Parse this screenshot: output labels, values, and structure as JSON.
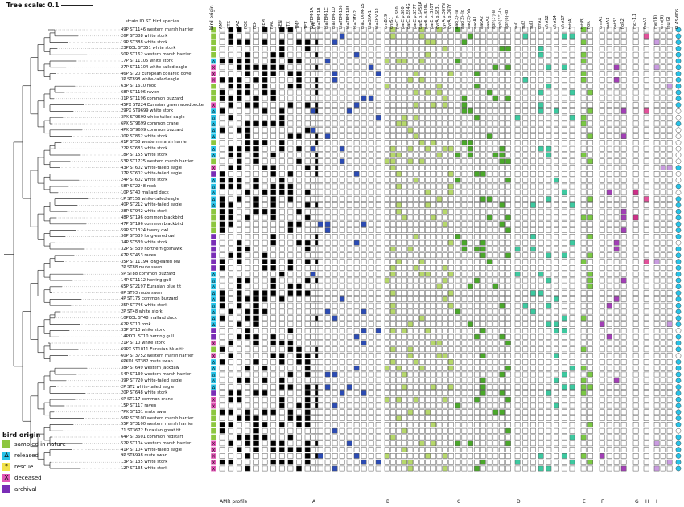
{
  "scale": {
    "label": "Tree scale: 0.1"
  },
  "column_title_strain": "strain ID ST bird species",
  "column_title_origin": "bird origin",
  "strains": [
    "49P ST1146 western marsh harrier",
    "26P ST388 white stork",
    "19P ST388 white stork",
    "23PKOL ST351 white stork",
    "50P ST162 western marsh harrier",
    "17P ST11105 white stork",
    "27P ST11104 white-tailed eagle",
    "46P ST20 European collared dove",
    "3P ST898 white-tailed eagle",
    "63P ST1610 rook",
    "68P ST1196 raven",
    "31P ST1196 common buzzard",
    "45PX ST224 Eurasian green woodpecker",
    "29PX ST9699 white stork",
    "3PX ST9699 white-tailed eagle",
    "6PX ST9699 common crane",
    "4PX ST9699 common buzzard",
    "30P ST862 white stork",
    "61P ST58 western marsh harrier",
    "22P ST683 white stork",
    "18P ST155 white stork",
    "53P ST1725 western marsh harrier",
    "43P ST602 white-tailed eagle",
    "37P ST602 white-tailed eagle",
    "24P ST602 white stork",
    "58P ST2248 rook",
    "10P ST40 mallard duck",
    "1P ST156 white-tailed eagle",
    "40P ST212 white-tailed eagle",
    "28P ST942 white stork",
    "48P ST196 common blackbird",
    "47P ST196 common blackbird",
    "59P ST1324 tawny owl",
    "36P ST539 long-eared owl",
    "34P ST539 white stork",
    "32P ST539 northern goshawk",
    "67P ST453 raven",
    "35P ST11194 long-eared owl",
    "7P ST88 mute swan",
    "5P ST88 common buzzard",
    "14P ST1112 herring gull",
    "65P ST2197 Eurasian blue tit",
    "8P ST93 mute swan",
    "4P ST175 common buzzard",
    "25P ST746 white stork",
    "2P ST48 white stork",
    "10PKOL ST48 mallard duck",
    "62P ST10 rook",
    "33P ST10 white stork",
    "14PKOL ST10 herring gull",
    "21P ST10 white stork",
    "69PX ST1011 Eurasian blue tit",
    "60P ST3752 western marsh harrier",
    "6PKOL ST382 mute swan",
    "38P ST649 western jackdaw",
    "54P ST130 western marsh harrier",
    "39P ST720 white-tailed eagle",
    "2P ST2 white-tailed eagle",
    "20P ST648 white stork",
    "6P ST117 common crane",
    "15P ST117 raven",
    "7PX ST131 mute swan",
    "56P ST3100 western marsh harrier",
    "55P ST3100 western marsh harrier",
    "71 ST3672 Eurasian great tit",
    "64P ST3601 common redstart",
    "52P ST104 western marsh harrier",
    "41P ST104 white-tailed eagle",
    "9P ST6998 mute swan",
    "13P ST135 white stork",
    "12P ST135 white stork"
  ],
  "origins": [
    "s",
    "s",
    "s",
    "s",
    "s",
    "r",
    "d",
    "d",
    "d",
    "s",
    "s",
    "s",
    "d",
    "r",
    "r",
    "r",
    "r",
    "r",
    "s",
    "r",
    "r",
    "s",
    "d",
    "a",
    "r",
    "r",
    "r",
    "r",
    "r",
    "s",
    "s",
    "s",
    "s",
    "a",
    "a",
    "a",
    "a",
    "a",
    "a",
    "r",
    "r",
    "r",
    "r",
    "r",
    "r",
    "r",
    "r",
    "r",
    "a",
    "a",
    "d",
    "s",
    "d",
    "r",
    "r",
    "r",
    "r",
    "r",
    "a",
    "d",
    "d",
    "s",
    "s",
    "s",
    "s",
    "s",
    "d",
    "d",
    "d",
    "d",
    "d"
  ],
  "origin_colors": {
    "s": "#8dc63f",
    "r": "#27c3e8",
    "x": "#f2e24a",
    "d": "#e255b6",
    "a": "#7a2db6"
  },
  "origin_marks": {
    "s": "",
    "r": "∆",
    "x": "*",
    "d": "X",
    "a": ""
  },
  "legend": {
    "title": "bird origin",
    "items": [
      {
        "key": "s",
        "label": "sampled in nature"
      },
      {
        "key": "r",
        "label": "released"
      },
      {
        "key": "x",
        "label": "rescue"
      },
      {
        "key": "d",
        "label": "deceased"
      },
      {
        "key": "a",
        "label": "archival"
      }
    ]
  },
  "groups": [
    {
      "label": "AMR profile",
      "color": "#000000",
      "cols": [
        "AMP",
        "CTX",
        "CAZ",
        "FOX",
        "FEP",
        "MEM",
        "NAL",
        "GEN",
        "STX",
        "TMP",
        "TET",
        "CHL"
      ]
    },
    {
      "label": "A",
      "color": "#2b4bb4",
      "cols": [
        "blaTEM-1A",
        "blaTEM-1B",
        "blaTEM-1C",
        "blaTEM-1D",
        "blaTEM-106",
        "blaTEM-135",
        "blaCMY-2",
        "blaCTX-M-15",
        "blaOXA-1",
        "blaSHV-12"
      ]
    },
    {
      "label": "B",
      "color": "#b6d86b",
      "cols": [
        "qnrB19",
        "qnrS1",
        "parC p.S80L",
        "parC p.S80I",
        "parC p.E84G",
        "parC p.S57T",
        "parE p.S458A",
        "parE p.I529L",
        "parE p.I355T",
        "gyrA p.S83L",
        "gyrA p.D87N",
        "gyrA p.D87Y"
      ]
    },
    {
      "label": "C",
      "color": "#4aa82a",
      "cols": [
        "aac(3)-IIa",
        "aac(3)-IId",
        "aac(3)-IVa",
        "aadA1",
        "aadA2",
        "aadA5",
        "aph(3')-Ia",
        "aph(3'')-Ib",
        "aph(6)-Id"
      ]
    },
    {
      "label": "D",
      "color": "#3dc9a0",
      "cols": [
        "sul1",
        "sul2",
        "sul3",
        "dfrA1",
        "dfrA12",
        "dfrA14",
        "dfrA17",
        "tet(A)"
      ]
    },
    {
      "label": "E",
      "color": "#7ac943",
      "cols": [
        "tet(B)",
        "floR"
      ]
    },
    {
      "label": "F",
      "color": "#a23fb6",
      "cols": [
        "cmlA1",
        "catA1",
        "catB3",
        "floR2"
      ]
    },
    {
      "label": "G",
      "color": "#cc2f87",
      "cols": [
        "mcr-1.1"
      ]
    },
    {
      "label": "H",
      "color": "#e3519b",
      "cols": [
        "fosA7"
      ]
    },
    {
      "label": "I",
      "color": "#c99be0",
      "cols": [
        "mef(B)",
        "erm(B)",
        "lnu(G)"
      ]
    },
    {
      "label": "",
      "color": "#27c3e8",
      "cols": [
        "PLASMIDS"
      ]
    }
  ],
  "matrix_colors": [
    "#000000",
    "#2b4bb4",
    "#b6d86b",
    "#4aa82a",
    "#3dc9a0",
    "#7ac943",
    "#a23fb6",
    "#cc2f87",
    "#e3519b",
    "#c99be0",
    "#27c3e8"
  ],
  "special_cell_note": "Q"
}
